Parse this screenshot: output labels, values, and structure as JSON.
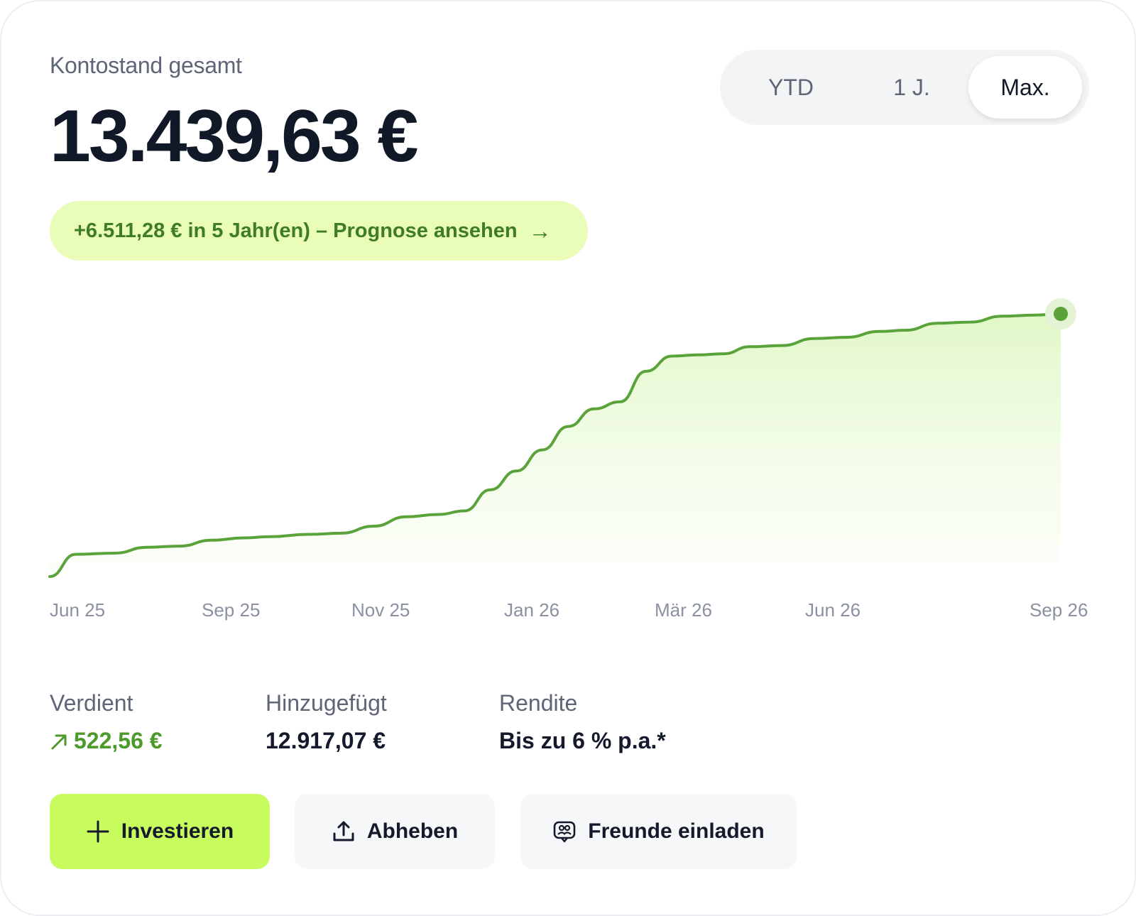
{
  "balance": {
    "label": "Kontostand gesamt",
    "value": "13.439,63 €"
  },
  "range_selector": {
    "options": [
      "YTD",
      "1 J.",
      "Max."
    ],
    "selected": "Max."
  },
  "forecast_pill": {
    "text": "+6.511,28 € in 5 Jahr(en) – Prognose ansehen",
    "arrow": "→"
  },
  "chart_data": {
    "type": "area",
    "x_tick_labels": [
      "Jun 25",
      "Sep 25",
      "Nov 25",
      "Jan 26",
      "Mär 26",
      "Jun 26",
      "Sep 26"
    ],
    "x": [
      0,
      0.4,
      1.0,
      1.5,
      2.0,
      2.5,
      3.0,
      3.4,
      4.0,
      4.5,
      5.0,
      5.5,
      6.0,
      6.4,
      6.8,
      7.2,
      7.6,
      8.0,
      8.4,
      8.8,
      9.2,
      9.6,
      10.0,
      10.4,
      10.8,
      11.3,
      11.8,
      12.3,
      12.8,
      13.2,
      13.7,
      14.2,
      14.7,
      15.2,
      15.6
    ],
    "values": [
      0,
      950,
      1000,
      1250,
      1300,
      1550,
      1650,
      1700,
      1800,
      1850,
      2150,
      2550,
      2650,
      2800,
      3700,
      4500,
      5400,
      6400,
      7150,
      7450,
      8750,
      9400,
      9450,
      9500,
      9800,
      9850,
      10150,
      10200,
      10450,
      10500,
      10800,
      10850,
      11100,
      11150,
      11200
    ],
    "series": [
      {
        "values_unit": "€"
      }
    ],
    "line_color": "#5aa33a",
    "fill_color": "#e7fbc9",
    "end_marker": true,
    "grid": false
  },
  "stats": [
    {
      "label": "Verdient",
      "value": "522,56 €",
      "icon": "arrow-up-right-icon",
      "color": "#4c9a2a"
    },
    {
      "label": "Hinzugefügt",
      "value": "12.917,07 €"
    },
    {
      "label": "Rendite",
      "value": "Bis zu 6 % p.a.*"
    }
  ],
  "actions": {
    "invest": {
      "label": "Investieren",
      "icon": "plus-icon"
    },
    "withdraw": {
      "label": "Abheben",
      "icon": "upload-icon"
    },
    "invite": {
      "label": "Freunde einladen",
      "icon": "invite-friends-icon"
    }
  },
  "colors": {
    "accent_green": "#c8fb5e",
    "pill_bg": "#e9fcb8",
    "text_dark": "#111827",
    "text_muted": "#5d6577"
  }
}
